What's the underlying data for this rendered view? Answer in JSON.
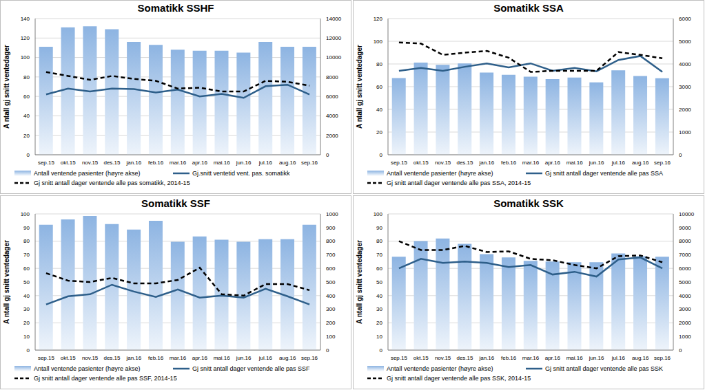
{
  "chart_data": [
    {
      "type": "bar",
      "title": "Somatikk SSHF",
      "y_label": "A ntall gj snitt ventedager",
      "categories": [
        "sep.15",
        "okt.15",
        "nov.15",
        "des.15",
        "jan.16",
        "feb.16",
        "mar.16",
        "apr.16",
        "mai.16",
        "jun.16",
        "jul.16",
        "aug.16",
        "sep.16"
      ],
      "ylim": [
        0,
        140
      ],
      "yticks": [
        0,
        20,
        40,
        60,
        80,
        100,
        120,
        140
      ],
      "y2lim": [
        0,
        14000
      ],
      "y2ticks": [
        0,
        2000,
        4000,
        6000,
        8000,
        10000,
        12000,
        14000
      ],
      "grid": true,
      "legend": "bottom",
      "series": [
        {
          "name": "Antall ventende pasienter (høyre akse)",
          "type": "bar",
          "axis": "y2",
          "color": "#8db4e2",
          "values": [
            11100,
            13100,
            13200,
            12900,
            11600,
            11300,
            10800,
            10700,
            10700,
            10500,
            11600,
            11100,
            11100
          ]
        },
        {
          "name": "Gj.snitt ventetid vent. pas. somatikk",
          "type": "line",
          "color": "#2e5f8a",
          "values": [
            62,
            68,
            65,
            68,
            67.5,
            64,
            67,
            60,
            62.5,
            58.5,
            70.5,
            72,
            62
          ]
        },
        {
          "name": "Gj snitt antall dager ventende alle pas somatikk, 2014-15",
          "type": "line",
          "line_style": "dashed",
          "color": "#000000",
          "values": [
            85,
            81,
            77,
            81,
            78,
            76,
            68,
            69,
            65,
            65,
            76,
            75,
            71
          ]
        }
      ]
    },
    {
      "type": "bar",
      "title": "Somatikk SSA",
      "y_label": "A ntall gj snitt ventedager",
      "categories": [
        "sep.15",
        "okt.15",
        "nov.15",
        "des.15",
        "jan.16",
        "feb.16",
        "mar.16",
        "apr.16",
        "mai.16",
        "jun.16",
        "jul.16",
        "aug.16",
        "sep.16"
      ],
      "ylim": [
        0,
        120
      ],
      "yticks": [
        0,
        20,
        40,
        60,
        80,
        100,
        120
      ],
      "y2lim": [
        0,
        6000
      ],
      "y2ticks": [
        0,
        1000,
        2000,
        3000,
        4000,
        5000,
        6000
      ],
      "grid": true,
      "legend": "bottom",
      "series": [
        {
          "name": "Antall ventende pasienter (høyre akse)",
          "type": "bar",
          "axis": "y2",
          "color": "#8db4e2",
          "values": [
            3380,
            4060,
            3960,
            4020,
            3620,
            3520,
            3440,
            3330,
            3400,
            3190,
            3720,
            3470,
            3370
          ]
        },
        {
          "name": "Gj snitt antall dager ventende alle pas SSA",
          "type": "line",
          "color": "#2e5f8a",
          "values": [
            74,
            76.5,
            74,
            77.5,
            80.5,
            77,
            80.5,
            74,
            76.5,
            73.5,
            83.5,
            87,
            73
          ]
        },
        {
          "name": "Gj snitt antall dager ventende alle pas SSA, 2014-15",
          "type": "line",
          "line_style": "dashed",
          "color": "#000000",
          "values": [
            99,
            98,
            88,
            90,
            91.5,
            85.5,
            73,
            74,
            74,
            74,
            90.5,
            88,
            85
          ]
        }
      ]
    },
    {
      "type": "bar",
      "title": "Somatikk SSF",
      "y_label": "A ntall gj snitt ventedager",
      "categories": [
        "sep.15",
        "okt.15",
        "nov.15",
        "des.15",
        "jan.16",
        "feb.16",
        "mar.16",
        "apr.16",
        "mai.16",
        "jun.16",
        "jul.16",
        "aug.16",
        "sep.16"
      ],
      "ylim": [
        0,
        100
      ],
      "yticks": [
        0,
        10,
        20,
        30,
        40,
        50,
        60,
        70,
        80,
        90,
        100
      ],
      "y2lim": [
        0,
        1000
      ],
      "y2ticks": [
        0,
        100,
        200,
        300,
        400,
        500,
        600,
        700,
        800,
        900,
        1000
      ],
      "grid": true,
      "legend": "bottom",
      "series": [
        {
          "name": "Antall ventende pasienter (høyre akse)",
          "type": "bar",
          "axis": "y2",
          "color": "#8db4e2",
          "values": [
            920,
            960,
            985,
            925,
            885,
            950,
            795,
            835,
            810,
            795,
            815,
            815,
            920
          ]
        },
        {
          "name": "Gj snitt antall dager ventende alle pas SSF",
          "type": "line",
          "color": "#2e5f8a",
          "values": [
            33.5,
            39.5,
            41,
            48,
            43,
            39,
            44.5,
            38.5,
            40,
            38.5,
            45,
            39.5,
            33.5
          ]
        },
        {
          "name": "Gj snitt antall dager ventende alle pas SSF, 2014-15",
          "type": "line",
          "line_style": "dashed",
          "color": "#000000",
          "values": [
            56.5,
            51,
            50,
            53,
            49,
            49,
            51.5,
            60.5,
            41,
            40,
            48.5,
            48.5,
            44
          ]
        }
      ]
    },
    {
      "type": "bar",
      "title": "Somatikk SSK",
      "y_label": "A ntall gj snitt ventedager",
      "categories": [
        "sep.15",
        "okt.15",
        "nov.15",
        "des.15",
        "jan.16",
        "feb.16",
        "mar.16",
        "apr.16",
        "mai.16",
        "jun.16",
        "jul.16",
        "aug.16",
        "sep.16"
      ],
      "ylim": [
        0,
        100
      ],
      "yticks": [
        0,
        10,
        20,
        30,
        40,
        50,
        60,
        70,
        80,
        90,
        100
      ],
      "y2lim": [
        0,
        10000
      ],
      "y2ticks": [
        0,
        1000,
        2000,
        3000,
        4000,
        5000,
        6000,
        7000,
        8000,
        9000,
        10000
      ],
      "grid": true,
      "legend": "bottom",
      "series": [
        {
          "name": "Antall ventende pasienter (høyre akse)",
          "type": "bar",
          "axis": "y2",
          "color": "#8db4e2",
          "values": [
            6850,
            8000,
            8200,
            7800,
            7050,
            6800,
            6550,
            6500,
            6450,
            6450,
            7100,
            6900,
            6850
          ]
        },
        {
          "name": "Gj snitt antall dager ventende alle pas SSK",
          "type": "line",
          "color": "#2e5f8a",
          "values": [
            60,
            67,
            64,
            65,
            64,
            61,
            62.5,
            55.5,
            57.5,
            54,
            66.5,
            68,
            60
          ]
        },
        {
          "name": "Gj snitt antall dager ventende alle pas SSK, 2014-15",
          "type": "line",
          "line_style": "dashed",
          "color": "#000000",
          "values": [
            80,
            73.5,
            73.5,
            76.5,
            72,
            72.5,
            67,
            66,
            62.5,
            60,
            69,
            69.5,
            64.5
          ]
        }
      ]
    }
  ]
}
